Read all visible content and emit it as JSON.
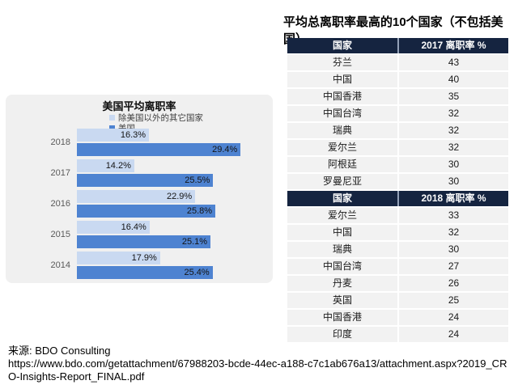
{
  "chart_data": [
    {
      "type": "bar",
      "orientation": "horizontal",
      "title": "美国平均离职率",
      "categories": [
        "2018",
        "2017",
        "2016",
        "2015",
        "2014"
      ],
      "series": [
        {
          "name": "除美国以外的其它国家",
          "color": "#c9d9f1",
          "values": [
            16.3,
            14.2,
            22.9,
            16.4,
            17.9
          ]
        },
        {
          "name": "美国",
          "color": "#4e83d1",
          "values": [
            29.4,
            25.5,
            25.8,
            25.1,
            25.4
          ]
        }
      ],
      "value_suffix": "%",
      "xlim": [
        6,
        34
      ],
      "axis_visible": false,
      "grid": false,
      "legend_position": "top-left",
      "panel_color": "#f0f0f0"
    },
    {
      "type": "table",
      "title": "平均总离职率最高的10个国家（不包括美国）",
      "header_bg": "#152440",
      "row_bg": "#f2f2f2",
      "sections": [
        {
          "headers": [
            "国家",
            "2017 离职率 %"
          ],
          "rows": [
            [
              "芬兰",
              "43"
            ],
            [
              "中国",
              "40"
            ],
            [
              "中国香港",
              "35"
            ],
            [
              "中国台湾",
              "32"
            ],
            [
              "瑞典",
              "32"
            ],
            [
              "爱尔兰",
              "32"
            ],
            [
              "阿根廷",
              "30"
            ],
            [
              "罗曼尼亚",
              "30"
            ]
          ]
        },
        {
          "headers": [
            "国家",
            "2018 离职率 %"
          ],
          "rows": [
            [
              "爱尔兰",
              "33"
            ],
            [
              "中国",
              "32"
            ],
            [
              "瑞典",
              "30"
            ],
            [
              "中国台湾",
              "27"
            ],
            [
              "丹麦",
              "26"
            ],
            [
              "英国",
              "25"
            ],
            [
              "中国香港",
              "24"
            ],
            [
              "印度",
              "24"
            ]
          ]
        }
      ]
    }
  ],
  "source": {
    "label": "来源: BDO Consulting",
    "url": "https://www.bdo.com/getattachment/67988203-bcde-44ec-a188-c7c1ab676a13/attachment.aspx?2019_CRO-Insights-Report_FINAL.pdf"
  }
}
